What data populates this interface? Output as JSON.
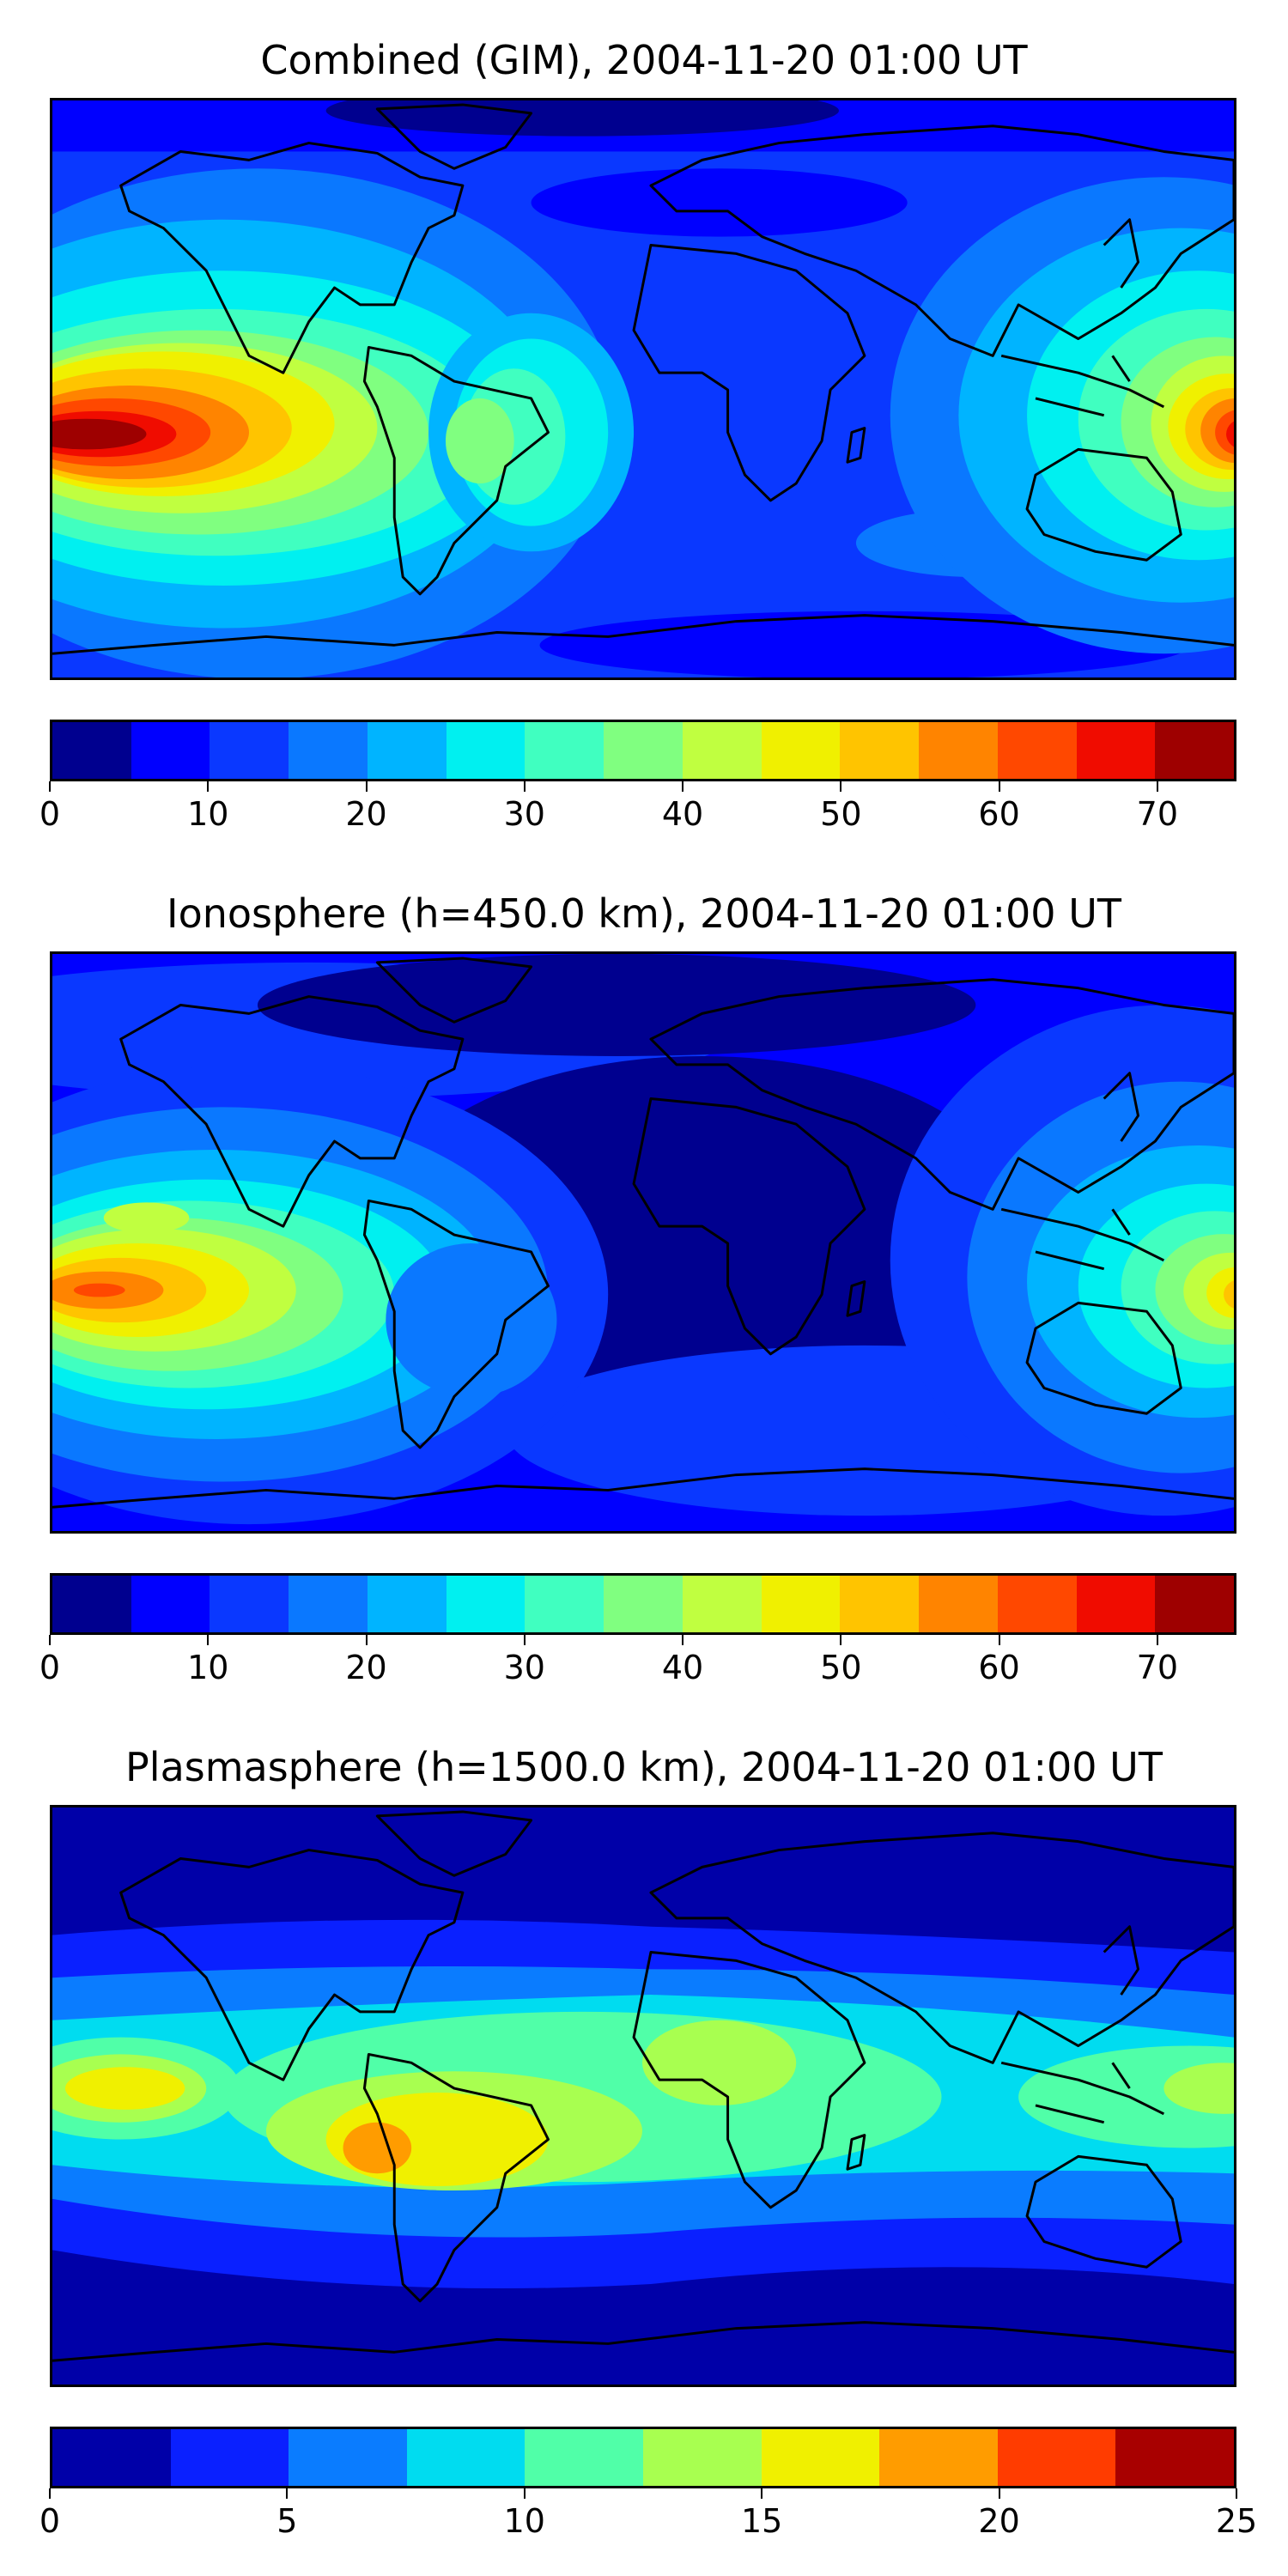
{
  "panels": [
    {
      "title": "Combined (GIM), 2004-11-20 01:00 UT",
      "colorbar_ticks": [
        "0",
        "10",
        "20",
        "30",
        "40",
        "50",
        "60",
        "70"
      ],
      "tick_values": [
        0,
        10,
        20,
        30,
        40,
        50,
        60,
        70
      ],
      "range": [
        0,
        75
      ],
      "level_step": 5
    },
    {
      "title": "Ionosphere  (h=450.0 km), 2004-11-20 01:00 UT",
      "colorbar_ticks": [
        "0",
        "10",
        "20",
        "30",
        "40",
        "50",
        "60",
        "70"
      ],
      "tick_values": [
        0,
        10,
        20,
        30,
        40,
        50,
        60,
        70
      ],
      "range": [
        0,
        75
      ],
      "level_step": 5
    },
    {
      "title": "Plasmasphere (h=1500.0 km), 2004-11-20 01:00 UT",
      "colorbar_ticks": [
        "0",
        "5",
        "10",
        "15",
        "20",
        "25"
      ],
      "tick_values": [
        0,
        5,
        10,
        15,
        20,
        25
      ],
      "range": [
        0,
        25
      ],
      "level_step": 2.5
    }
  ],
  "colors": {
    "jet15": [
      "#00008f",
      "#0000ff",
      "#0a38ff",
      "#0a78ff",
      "#00b4ff",
      "#00f0f0",
      "#40ffc0",
      "#80ff80",
      "#c0ff40",
      "#f0f000",
      "#ffc400",
      "#ff8400",
      "#ff4800",
      "#f00c00",
      "#9e0000"
    ],
    "jet10": [
      "#0000a8",
      "#0a20ff",
      "#0a7cff",
      "#00dcf0",
      "#50ffa8",
      "#a8ff50",
      "#f0f000",
      "#ff9c00",
      "#ff3c00",
      "#a80000"
    ]
  }
}
